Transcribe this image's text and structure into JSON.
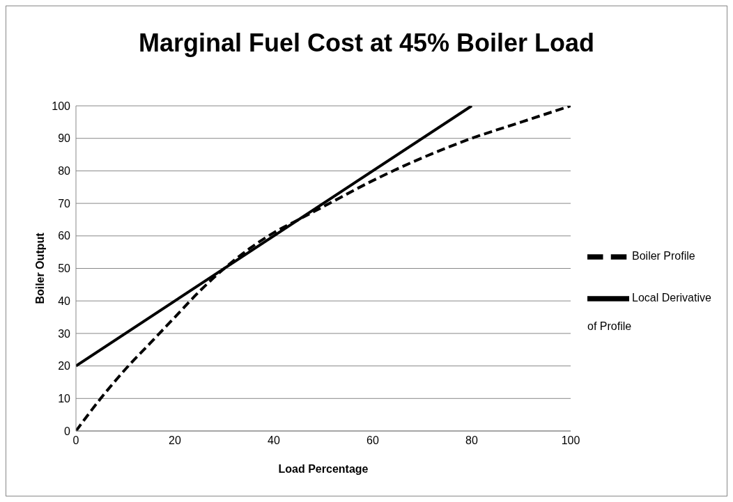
{
  "chart_data": {
    "type": "line",
    "title": "Marginal Fuel Cost at 45% Boiler Load",
    "xlabel": "Load Percentage",
    "ylabel": "Boiler Output",
    "xlim": [
      0,
      100
    ],
    "xticks": [
      0,
      20,
      40,
      60,
      80,
      100
    ],
    "ylim": [
      0,
      100
    ],
    "yticks": [
      0,
      10,
      20,
      30,
      40,
      50,
      60,
      70,
      80,
      90,
      100
    ],
    "grid": "y",
    "legend": "right",
    "marker": "none",
    "series": [
      {
        "name": "Boiler Profile",
        "color": "#000000",
        "line_style": "dashed",
        "x": [
          0,
          5,
          10,
          15,
          20,
          25,
          30,
          35,
          40,
          45,
          50,
          60,
          70,
          80,
          90,
          100
        ],
        "values": [
          0,
          10,
          19,
          27,
          35,
          43,
          50,
          56,
          61,
          65,
          69,
          77,
          84,
          90,
          95,
          100
        ]
      },
      {
        "name": "Local Derivative of Profile",
        "color": "#000000",
        "line_style": "solid",
        "x": [
          0,
          80
        ],
        "values": [
          20,
          100
        ]
      }
    ]
  }
}
